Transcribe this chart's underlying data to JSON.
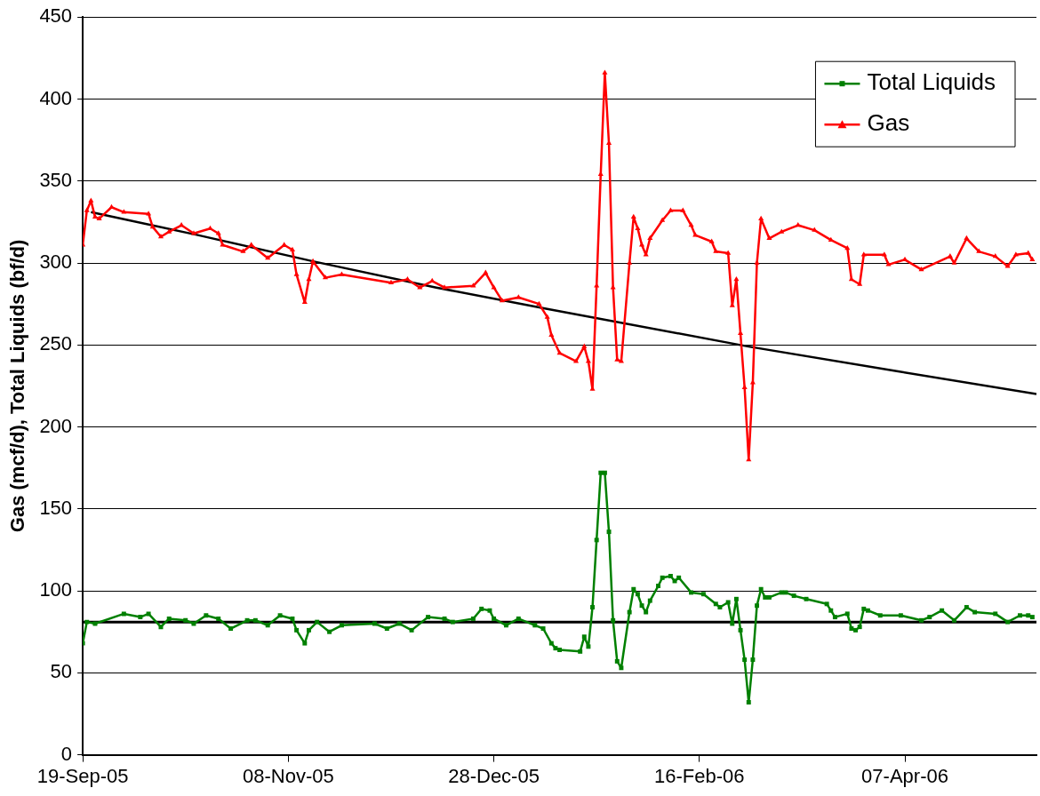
{
  "chart_data": {
    "type": "line",
    "ylabel": "Gas (mcf/d), Total Liquids (bf/d)",
    "xlim": [
      "2005-09-19",
      "2006-05-09"
    ],
    "xticks": [
      {
        "value": "2005-09-19",
        "label": "19-Sep-05"
      },
      {
        "value": "2005-11-08",
        "label": "08-Nov-05"
      },
      {
        "value": "2005-12-28",
        "label": "28-Dec-05"
      },
      {
        "value": "2006-02-16",
        "label": "16-Feb-06"
      },
      {
        "value": "2006-04-07",
        "label": "07-Apr-06"
      }
    ],
    "ylim": [
      0,
      450
    ],
    "yticks": [
      0,
      50,
      100,
      150,
      200,
      250,
      300,
      350,
      400,
      450
    ],
    "grid": "y",
    "legend": "top right",
    "ref_lines": [
      {
        "axis": "y",
        "value": 81,
        "color": "#000000"
      }
    ],
    "series": [
      {
        "name": "Total Liquids",
        "color": "#008000",
        "marker": "square",
        "x": [
          "2005-09-19",
          "2005-09-20",
          "2005-09-22",
          "2005-09-29",
          "2005-10-03",
          "2005-10-05",
          "2005-10-08",
          "2005-10-10",
          "2005-10-14",
          "2005-10-16",
          "2005-10-19",
          "2005-10-22",
          "2005-10-25",
          "2005-10-29",
          "2005-10-31",
          "2005-11-03",
          "2005-11-06",
          "2005-11-09",
          "2005-11-10",
          "2005-11-12",
          "2005-11-13",
          "2005-11-15",
          "2005-11-18",
          "2005-11-21",
          "2005-11-29",
          "2005-12-02",
          "2005-12-05",
          "2005-12-08",
          "2005-12-12",
          "2005-12-16",
          "2005-12-18",
          "2005-12-23",
          "2005-12-25",
          "2005-12-27",
          "2005-12-28",
          "2005-12-31",
          "2006-01-03",
          "2006-01-07",
          "2006-01-09",
          "2006-01-11",
          "2006-01-12",
          "2006-01-13",
          "2006-01-18",
          "2006-01-19",
          "2006-01-20",
          "2006-01-21",
          "2006-01-22",
          "2006-01-23",
          "2006-01-24",
          "2006-01-25",
          "2006-01-26",
          "2006-01-27",
          "2006-01-28",
          "2006-01-30",
          "2006-01-31",
          "2006-02-01",
          "2006-02-02",
          "2006-02-03",
          "2006-02-04",
          "2006-02-06",
          "2006-02-07",
          "2006-02-09",
          "2006-02-10",
          "2006-02-11",
          "2006-02-14",
          "2006-02-17",
          "2006-02-20",
          "2006-02-21",
          "2006-02-23",
          "2006-02-24",
          "2006-02-25",
          "2006-02-26",
          "2006-02-27",
          "2006-02-28",
          "2006-03-01",
          "2006-03-02",
          "2006-03-03",
          "2006-03-04",
          "2006-03-05",
          "2006-03-08",
          "2006-03-09",
          "2006-03-11",
          "2006-03-14",
          "2006-03-19",
          "2006-03-20",
          "2006-03-21",
          "2006-03-24",
          "2006-03-25",
          "2006-03-26",
          "2006-03-27",
          "2006-03-28",
          "2006-03-29",
          "2006-04-01",
          "2006-04-06",
          "2006-04-11",
          "2006-04-13",
          "2006-04-16",
          "2006-04-19",
          "2006-04-22",
          "2006-04-24",
          "2006-04-29",
          "2006-05-02",
          "2006-05-05",
          "2006-05-07",
          "2006-05-08"
        ],
        "values": [
          68,
          81,
          80,
          86,
          84,
          86,
          78,
          83,
          82,
          80,
          85,
          83,
          77,
          82,
          82,
          79,
          85,
          83,
          76,
          68,
          76,
          81,
          75,
          79,
          80,
          77,
          80,
          76,
          84,
          83,
          81,
          83,
          89,
          88,
          83,
          79,
          83,
          79,
          77,
          68,
          65,
          64,
          63,
          72,
          66,
          90,
          131,
          172,
          172,
          136,
          82,
          57,
          53,
          87,
          101,
          98,
          91,
          87,
          94,
          103,
          108,
          109,
          106,
          108,
          99,
          98,
          92,
          90,
          93,
          80,
          95,
          76,
          58,
          32,
          58,
          91,
          101,
          96,
          96,
          99,
          99,
          97,
          95,
          92,
          88,
          84,
          86,
          77,
          76,
          78,
          89,
          88,
          85,
          85,
          82,
          84,
          88,
          82,
          90,
          87,
          86,
          81,
          85,
          85,
          84
        ]
      },
      {
        "name": "Gas",
        "color": "#ff0000",
        "marker": "triangle",
        "x": [
          "2005-09-19",
          "2005-09-20",
          "2005-09-21",
          "2005-09-22",
          "2005-09-23",
          "2005-09-26",
          "2005-09-29",
          "2005-10-05",
          "2005-10-06",
          "2005-10-08",
          "2005-10-10",
          "2005-10-13",
          "2005-10-16",
          "2005-10-20",
          "2005-10-22",
          "2005-10-23",
          "2005-10-28",
          "2005-10-30",
          "2005-11-03",
          "2005-11-07",
          "2005-11-09",
          "2005-11-10",
          "2005-11-12",
          "2005-11-13",
          "2005-11-14",
          "2005-11-17",
          "2005-11-21",
          "2005-12-03",
          "2005-12-07",
          "2005-12-10",
          "2005-12-13",
          "2005-12-16",
          "2005-12-23",
          "2005-12-26",
          "2005-12-28",
          "2005-12-30",
          "2006-01-03",
          "2006-01-08",
          "2006-01-10",
          "2006-01-11",
          "2006-01-13",
          "2006-01-17",
          "2006-01-19",
          "2006-01-20",
          "2006-01-21",
          "2006-01-22",
          "2006-01-23",
          "2006-01-24",
          "2006-01-25",
          "2006-01-26",
          "2006-01-27",
          "2006-01-28",
          "2006-01-30",
          "2006-01-31",
          "2006-02-01",
          "2006-02-02",
          "2006-02-03",
          "2006-02-04",
          "2006-02-07",
          "2006-02-09",
          "2006-02-12",
          "2006-02-14",
          "2006-02-15",
          "2006-02-19",
          "2006-02-20",
          "2006-02-23",
          "2006-02-24",
          "2006-02-25",
          "2006-02-26",
          "2006-02-27",
          "2006-02-28",
          "2006-03-01",
          "2006-03-02",
          "2006-03-03",
          "2006-03-05",
          "2006-03-08",
          "2006-03-12",
          "2006-03-16",
          "2006-03-20",
          "2006-03-24",
          "2006-03-25",
          "2006-03-27",
          "2006-03-28",
          "2006-04-02",
          "2006-04-03",
          "2006-04-07",
          "2006-04-11",
          "2006-04-18",
          "2006-04-19",
          "2006-04-22",
          "2006-04-25",
          "2006-04-29",
          "2006-05-02",
          "2006-05-04",
          "2006-05-07",
          "2006-05-08"
        ],
        "values": [
          311,
          332,
          338,
          328,
          327,
          334,
          331,
          330,
          322,
          316,
          319,
          323,
          318,
          321,
          318,
          311,
          307,
          311,
          303,
          311,
          308,
          293,
          276,
          290,
          301,
          291,
          293,
          288,
          290,
          285,
          289,
          285,
          286,
          294,
          285,
          277,
          279,
          275,
          267,
          256,
          245,
          240,
          249,
          240,
          223,
          286,
          354,
          416,
          373,
          285,
          241,
          240,
          300,
          328,
          321,
          311,
          305,
          315,
          326,
          332,
          332,
          323,
          317,
          313,
          307,
          306,
          274,
          290,
          257,
          224,
          180,
          227,
          300,
          327,
          315,
          319,
          323,
          320,
          314,
          309,
          290,
          287,
          305,
          305,
          299,
          302,
          296,
          304,
          300,
          315,
          307,
          304,
          298,
          305,
          306,
          302
        ]
      },
      {
        "color": "#000000",
        "marker": "none",
        "x": [
          "2005-09-21",
          "2005-10-17",
          "2005-11-14",
          "2005-12-14",
          "2006-01-10",
          "2006-02-28",
          "2006-04-05",
          "2006-05-09"
        ],
        "values": [
          331,
          317,
          301,
          285,
          272,
          249,
          234,
          220
        ]
      }
    ]
  }
}
